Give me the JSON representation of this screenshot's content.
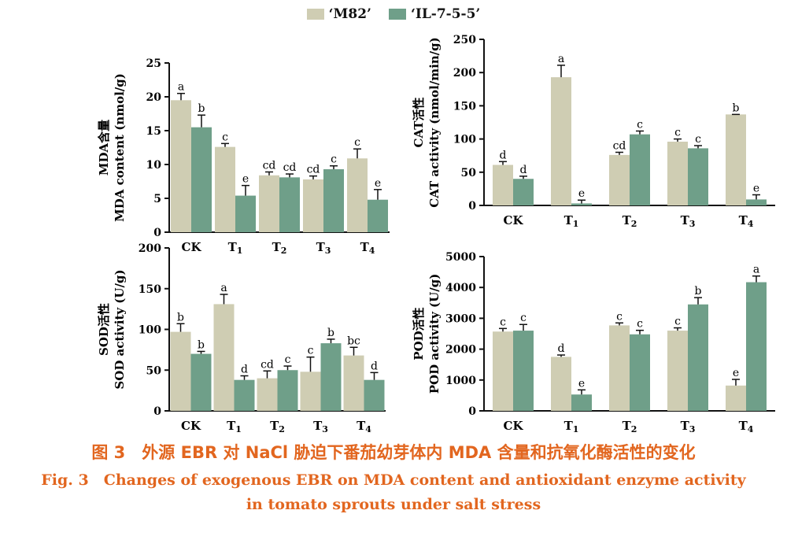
{
  "colors": {
    "m82": "#cfcdb3",
    "il": "#6f9f89"
  },
  "legend": {
    "m82": "‘M82’",
    "il": "‘IL-7-5-5’"
  },
  "caption": {
    "zh": "图 3　外源 EBR 对 NaCl 胁迫下番茄幼芽体内 MDA 含量和抗氧化酶活性的变化",
    "en_line1": "Fig. 3　Changes of exogenous EBR on MDA content and antioxidant enzyme activity",
    "en_line2": "in tomato sprouts under salt stress"
  },
  "chart_data": [
    {
      "type": "bar",
      "panel": "MDA",
      "ylabel_zh": "MDA含量",
      "ylabel_en": "MDA content (nmol/g)",
      "categories": [
        "CK",
        "T1",
        "T2",
        "T3",
        "T4"
      ],
      "ylim": [
        0,
        25
      ],
      "yticks": [
        0,
        5,
        10,
        15,
        20,
        25
      ],
      "series": [
        {
          "name": "‘M82’",
          "values": [
            19.5,
            12.6,
            8.4,
            7.8,
            10.9
          ],
          "errors": [
            1.0,
            0.5,
            0.5,
            0.5,
            1.4
          ],
          "letters": [
            "a",
            "c",
            "cd",
            "cd",
            "c"
          ]
        },
        {
          "name": "‘IL-7-5-5’",
          "values": [
            15.5,
            5.4,
            8.1,
            9.3,
            4.8
          ],
          "errors": [
            1.8,
            1.5,
            0.5,
            0.5,
            1.5
          ],
          "letters": [
            "b",
            "e",
            "cd",
            "c",
            "e"
          ]
        }
      ]
    },
    {
      "type": "bar",
      "panel": "CAT",
      "ylabel_zh": "CAT活性",
      "ylabel_en": "CAT activity (nmol/min/g)",
      "categories": [
        "CK",
        "T1",
        "T2",
        "T3",
        "T4"
      ],
      "ylim": [
        0,
        250
      ],
      "yticks": [
        0,
        50,
        100,
        150,
        200,
        250
      ],
      "series": [
        {
          "name": "‘M82’",
          "values": [
            61,
            193,
            76,
            96,
            137
          ],
          "errors": [
            5,
            18,
            4,
            4,
            0
          ],
          "letters": [
            "d",
            "a",
            "cd",
            "c",
            "b"
          ]
        },
        {
          "name": "‘IL-7-5-5’",
          "values": [
            40,
            3,
            107,
            86,
            9
          ],
          "errors": [
            4,
            5,
            5,
            4,
            7
          ],
          "letters": [
            "d",
            "e",
            "c",
            "c",
            "e"
          ]
        }
      ]
    },
    {
      "type": "bar",
      "panel": "SOD",
      "ylabel_zh": "SOD活性",
      "ylabel_en": "SOD activity (U/g)",
      "categories": [
        "CK",
        "T1",
        "T2",
        "T3",
        "T4"
      ],
      "ylim": [
        0,
        200
      ],
      "yticks": [
        0,
        50,
        100,
        150,
        200
      ],
      "series": [
        {
          "name": "‘M82’",
          "values": [
            97,
            131,
            40,
            48,
            68
          ],
          "errors": [
            10,
            12,
            9,
            18,
            10
          ],
          "letters": [
            "b",
            "a",
            "cd",
            "c",
            "bc"
          ]
        },
        {
          "name": "‘IL-7-5-5’",
          "values": [
            70,
            38,
            50,
            83,
            38
          ],
          "errors": [
            3,
            5,
            5,
            5,
            9
          ],
          "letters": [
            "b",
            "d",
            "c",
            "b",
            "d"
          ]
        }
      ]
    },
    {
      "type": "bar",
      "panel": "POD",
      "ylabel_zh": "POD活性",
      "ylabel_en": "POD activity (U/g)",
      "categories": [
        "CK",
        "T1",
        "T2",
        "T3",
        "T4"
      ],
      "ylim": [
        0,
        5000
      ],
      "yticks": [
        0,
        1000,
        2000,
        3000,
        4000,
        5000
      ],
      "series": [
        {
          "name": "‘M82’",
          "values": [
            2570,
            1750,
            2770,
            2600,
            820
          ],
          "errors": [
            100,
            60,
            80,
            90,
            200
          ],
          "letters": [
            "c",
            "d",
            "c",
            "c",
            "e"
          ]
        },
        {
          "name": "‘IL-7-5-5’",
          "values": [
            2600,
            530,
            2480,
            3450,
            4170
          ],
          "errors": [
            200,
            150,
            130,
            220,
            200
          ],
          "letters": [
            "c",
            "e",
            "c",
            "b",
            "a"
          ]
        }
      ]
    }
  ]
}
